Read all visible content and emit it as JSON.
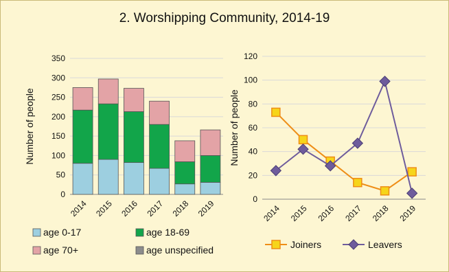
{
  "title": "2. Worshipping Community, 2014-19",
  "chart_data": [
    {
      "type": "bar",
      "stacked": true,
      "categories": [
        "2014",
        "2015",
        "2016",
        "2017",
        "2018",
        "2019"
      ],
      "ylabel": "Number of people",
      "ylim": [
        0,
        350
      ],
      "yticks": [
        0,
        50,
        100,
        150,
        200,
        250,
        300,
        350
      ],
      "grid": true,
      "legend_position": "bottom",
      "series": [
        {
          "name": "age 0-17",
          "color": "#9dcfe0",
          "values": [
            80,
            90,
            82,
            67,
            27,
            31
          ]
        },
        {
          "name": "age 18-69",
          "color": "#12a54a",
          "values": [
            137,
            143,
            131,
            113,
            57,
            69
          ]
        },
        {
          "name": "age 70+",
          "color": "#e3a3a6",
          "values": [
            58,
            64,
            60,
            60,
            54,
            66
          ]
        },
        {
          "name": "age unspecified",
          "color": "#8c8c8c",
          "values": [
            0,
            0,
            0,
            0,
            0,
            0
          ]
        }
      ]
    },
    {
      "type": "line",
      "x": [
        "2014",
        "2015",
        "2016",
        "2017",
        "2018",
        "2019"
      ],
      "ylabel": "Number of people",
      "ylim": [
        0,
        120
      ],
      "yticks": [
        0,
        20,
        40,
        60,
        80,
        100,
        120
      ],
      "grid": true,
      "legend_position": "bottom",
      "series": [
        {
          "name": "Joiners",
          "color": "#ee8d16",
          "marker_color": "#f6d51a",
          "marker": "square",
          "values": [
            73,
            50,
            32,
            14,
            7,
            23
          ]
        },
        {
          "name": "Leavers",
          "color": "#6e5c9c",
          "marker_color": "#6e5c9c",
          "marker": "diamond",
          "values": [
            24,
            42,
            28,
            47,
            99,
            5
          ]
        }
      ]
    }
  ]
}
